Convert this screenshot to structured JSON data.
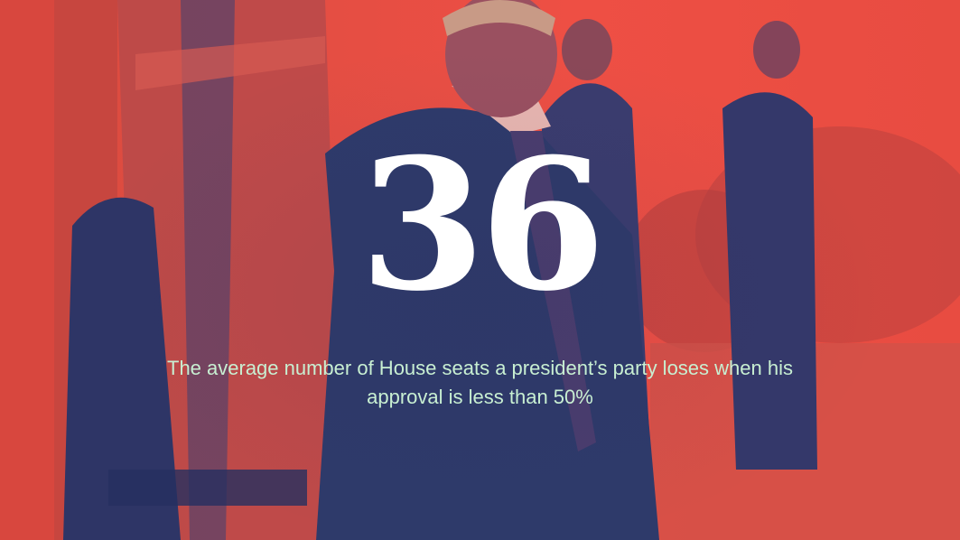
{
  "stat": {
    "number": "36",
    "caption": "The average number of House seats a president’s party loses when his approval is less than 50%"
  },
  "colors": {
    "background_red": "#e8493f",
    "duotone_navy": "#2e3a6a",
    "number_color": "#ffffff",
    "caption_color": "#c8efd2"
  }
}
